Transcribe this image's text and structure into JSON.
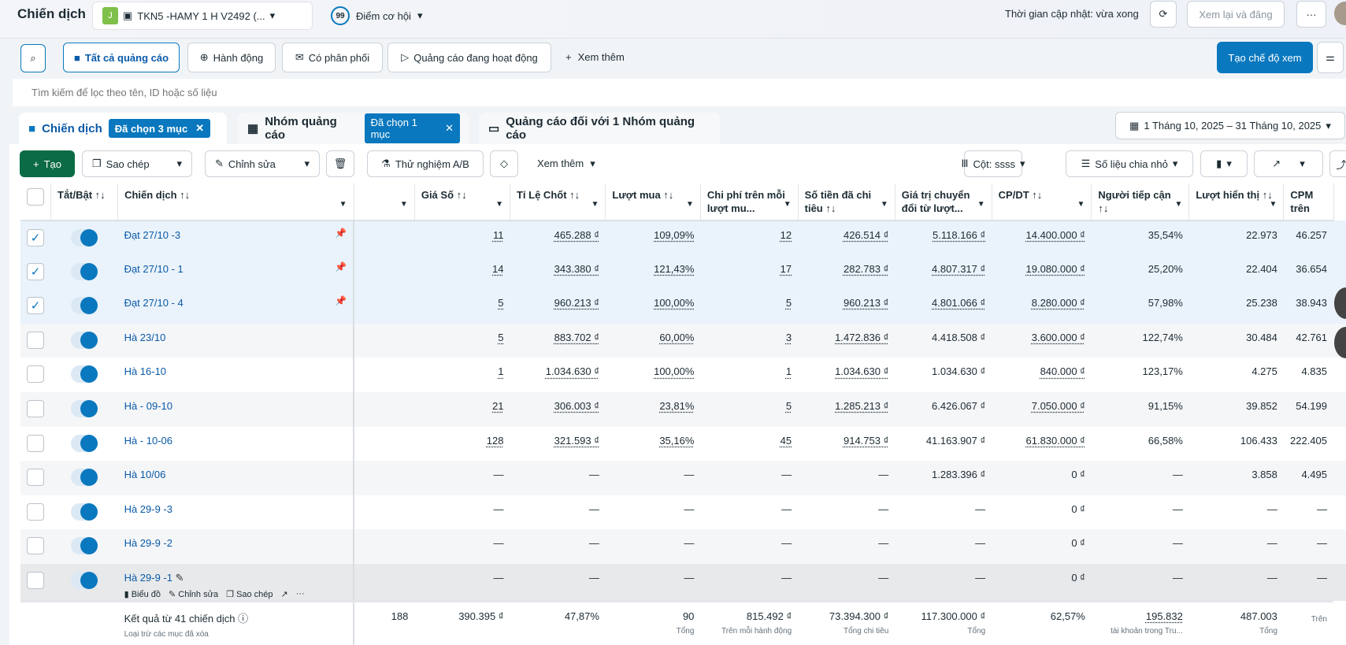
{
  "header": {
    "title": "Chiến dịch",
    "account_initial": "J",
    "account_name": "TKN5 -HAMY 1 H V2492 (...",
    "score": "99",
    "score_label": "Điểm cơ hội",
    "update_time": "Thời gian cập nhật: vừa xong",
    "review_publish": "Xem lại và đăng",
    "more": "···"
  },
  "filters": {
    "items": [
      "Tất cả quảng cáo",
      "Hành động",
      "Có phân phối",
      "Quảng cáo đang hoạt động"
    ],
    "see_more": "Xem thêm",
    "create_view": "Tạo chế độ xem",
    "search_placeholder": "Tìm kiếm để lọc theo tên, ID hoặc số liệu"
  },
  "tabs": [
    {
      "label": "Chiến dịch",
      "chip": "Đã chọn 3 mục"
    },
    {
      "label": "Nhóm quảng cáo",
      "chip": "Đã chọn 1 mục"
    },
    {
      "label": "Quảng cáo đối với 1 Nhóm quảng cáo"
    }
  ],
  "date_range": "1 Tháng 10, 2025 – 31 Tháng 10, 2025",
  "toolbar": {
    "create": "Tạo",
    "copy": "Sao chép",
    "edit": "Chỉnh sửa",
    "ab_test": "Thử nghiệm A/B",
    "see_more": "Xem thêm",
    "columns": "Cột: ssss",
    "breakdown": "Số liệu chia nhỏ"
  },
  "table": {
    "headers": [
      "Tắt/Bật ↑↓",
      "Chiến dịch ↑↓",
      "",
      "Giá Số ↑↓",
      "Tỉ Lệ Chốt ↑↓",
      "Lượt mua ↑↓",
      "Chi phí trên mỗi lượt mu...",
      "Số tiền đã chi tiêu ↑↓",
      "Giá trị chuyển đổi từ lượt...",
      "CP/DT ↑↓",
      "Người tiếp cận ↑↓",
      "Lượt hiển thị ↑↓",
      "CPM trên"
    ],
    "rows": [
      {
        "name": "Đạt 27/10 -3",
        "checked": true,
        "pinned": true,
        "cells": [
          "11",
          "465.288 ₫",
          "109,09%",
          "12",
          "426.514 ₫",
          "5.118.166 ₫",
          "14.400.000 ₫",
          "35,54%",
          "22.973",
          "46.257"
        ]
      },
      {
        "name": "Đạt 27/10 - 1",
        "checked": true,
        "pinned": true,
        "cells": [
          "14",
          "343.380 ₫",
          "121,43%",
          "17",
          "282.783 ₫",
          "4.807.317 ₫",
          "19.080.000 ₫",
          "25,20%",
          "22.404",
          "36.654"
        ]
      },
      {
        "name": "Đạt 27/10 - 4",
        "checked": true,
        "pinned": true,
        "cells": [
          "5",
          "960.213 ₫",
          "100,00%",
          "5",
          "960.213 ₫",
          "4.801.066 ₫",
          "8.280.000 ₫",
          "57,98%",
          "25.238",
          "38.943"
        ]
      },
      {
        "name": "Hà 23/10",
        "cells": [
          "5",
          "883.702 ₫",
          "60,00%",
          "3",
          "1.472.836 ₫",
          "4.418.508 ₫",
          "3.600.000 ₫",
          "122,74%",
          "30.484",
          "42.761"
        ]
      },
      {
        "name": "Hà 16-10",
        "cells": [
          "1",
          "1.034.630 ₫",
          "100,00%",
          "1",
          "1.034.630 ₫",
          "1.034.630 ₫",
          "840.000 ₫",
          "123,17%",
          "4.275",
          "4.835"
        ]
      },
      {
        "name": "Hà - 09-10",
        "cells": [
          "21",
          "306.003 ₫",
          "23,81%",
          "5",
          "1.285.213 ₫",
          "6.426.067 ₫",
          "7.050.000 ₫",
          "91,15%",
          "39.852",
          "54.199"
        ]
      },
      {
        "name": "Hà - 10-06",
        "cells": [
          "128",
          "321.593 ₫",
          "35,16%",
          "45",
          "914.753 ₫",
          "41.163.907 ₫",
          "61.830.000 ₫",
          "66,58%",
          "106.433",
          "222.405"
        ]
      },
      {
        "name": "Hà 10/06",
        "cells": [
          "—",
          "—",
          "—",
          "—",
          "—",
          "1.283.396 ₫",
          "0 ₫",
          "—",
          "3.858",
          "4.495"
        ]
      },
      {
        "name": "Hà 29-9 -3",
        "cells": [
          "—",
          "—",
          "—",
          "—",
          "—",
          "—",
          "0 ₫",
          "—",
          "—",
          "—"
        ]
      },
      {
        "name": "Hà 29-9 -2",
        "cells": [
          "—",
          "—",
          "—",
          "—",
          "—",
          "—",
          "0 ₫",
          "—",
          "—",
          "—"
        ]
      },
      {
        "name": "Hà 29-9 -1",
        "hover": true,
        "actions": [
          "Biểu đồ",
          "Chỉnh sửa",
          "Sao chép"
        ],
        "cells": [
          "—",
          "—",
          "—",
          "—",
          "—",
          "—",
          "0 ₫",
          "—",
          "—",
          "—"
        ]
      }
    ],
    "footer": {
      "title": "Kết quả từ 41 chiến dịch",
      "subtitle": "Loại trừ các mục đã xóa",
      "cells": [
        [
          "188",
          ""
        ],
        [
          "390.395 ₫",
          ""
        ],
        [
          "47,87%",
          ""
        ],
        [
          "90",
          "Tổng"
        ],
        [
          "815.492 ₫",
          "Trên mỗi hành động"
        ],
        [
          "73.394.300 ₫",
          "Tổng chi tiêu"
        ],
        [
          "117.300.000 ₫",
          "Tổng"
        ],
        [
          "62,57%",
          ""
        ],
        [
          "195.832",
          "tài khoản trong Tru..."
        ],
        [
          "487.003",
          "Tổng"
        ],
        [
          "",
          "Trên"
        ]
      ]
    }
  },
  "colors": {
    "accent": "#0a78be",
    "create": "#0b6b45"
  }
}
